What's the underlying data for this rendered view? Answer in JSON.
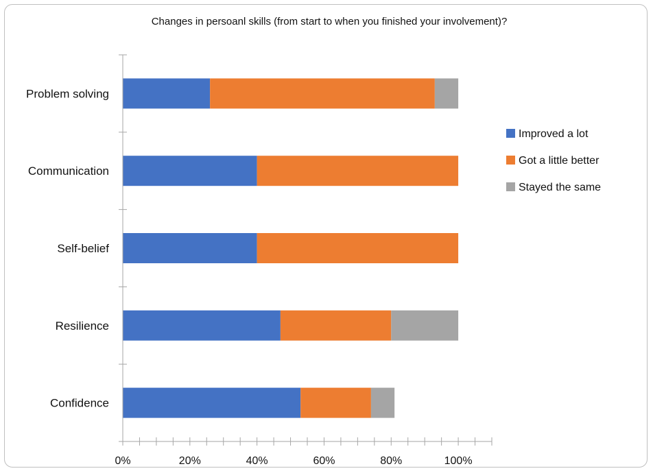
{
  "chart_data": {
    "type": "bar",
    "orientation": "horizontal",
    "stacked": true,
    "title": "Changes in persoanl skills (from start to when you finished your involvement)?",
    "categories": [
      "Problem solving",
      "Communication",
      "Self-belief",
      "Resilience",
      "Confidence"
    ],
    "series": [
      {
        "name": "Improved a lot",
        "color": "#4472c4",
        "values": [
          26,
          40,
          40,
          47,
          53
        ]
      },
      {
        "name": "Got a little better",
        "color": "#ed7d31",
        "values": [
          67,
          60,
          60,
          33,
          21
        ]
      },
      {
        "name": "Stayed the same",
        "color": "#a5a5a5",
        "values": [
          7,
          0,
          0,
          20,
          7
        ]
      }
    ],
    "xlim": [
      0,
      110
    ],
    "x_ticks": [
      "0%",
      "20%",
      "40%",
      "60%",
      "80%",
      "100%"
    ],
    "grid": false,
    "legend_position": "right"
  }
}
